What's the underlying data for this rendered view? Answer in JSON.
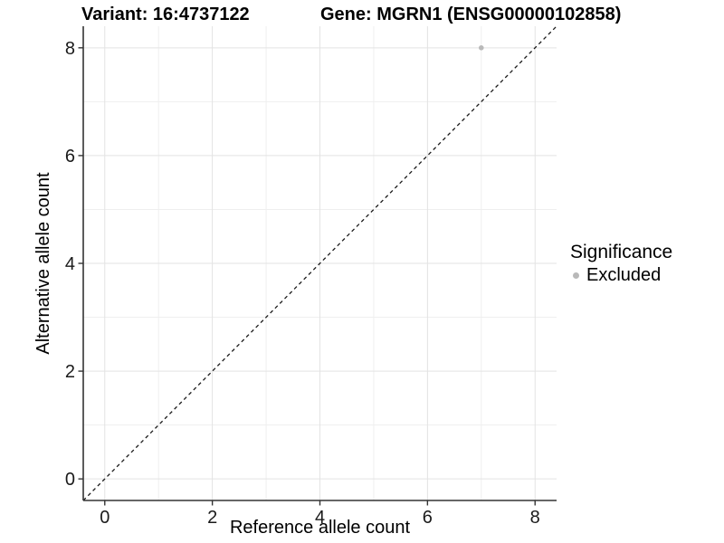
{
  "chart_data": {
    "type": "scatter",
    "title_left": "Variant: 16:4737122",
    "title_right": "Gene: MGRN1 (ENSG00000102858)",
    "xlabel": "Reference allele count",
    "ylabel": "Alternative allele count",
    "xlim": [
      -0.4,
      8.4
    ],
    "ylim": [
      -0.4,
      8.4
    ],
    "xticks": [
      0,
      2,
      4,
      6,
      8
    ],
    "yticks": [
      0,
      2,
      4,
      6,
      8
    ],
    "minor_gridlines": [
      1,
      3,
      5,
      7
    ],
    "grid": "major+minor",
    "points": [
      {
        "x": 7,
        "y": 8,
        "series": "Excluded"
      }
    ],
    "reference_line": {
      "slope": 1,
      "intercept": 0,
      "style": "dashed",
      "color": "#1a1a1a"
    },
    "legend": {
      "title": "Significance",
      "position": "right",
      "entries": [
        {
          "label": "Excluded",
          "color": "#b9b9b9"
        }
      ]
    },
    "colors": {
      "excluded_point": "#b9b9b9",
      "grid_major": "#e3e3e3",
      "grid_minor": "#efefef",
      "axis": "#333333",
      "tick_text": "#1a1a1a",
      "background": "#ffffff"
    }
  }
}
